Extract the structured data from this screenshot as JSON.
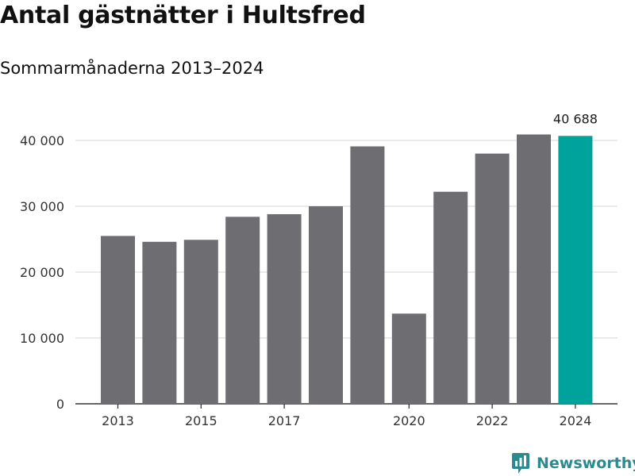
{
  "header": {
    "title": "Antal gästnätter i Hultsfred",
    "subtitle": "Sommarmånaderna 2013–2024"
  },
  "branding": {
    "name": "Newsworthy",
    "logo_icon": "newsworthy-chart-bubble-icon",
    "color": "#2a8a8f"
  },
  "colors": {
    "bar": "#6e6d72",
    "highlight": "#00a39b",
    "grid": "#dddddd",
    "axis": "#333333"
  },
  "chart_data": {
    "type": "bar",
    "title": "Antal gästnätter i Hultsfred",
    "subtitle": "Sommarmånaderna 2013–2024",
    "categories": [
      "2013",
      "2014",
      "2015",
      "2016",
      "2017",
      "2018",
      "2019",
      "2020",
      "2021",
      "2022",
      "2023",
      "2024"
    ],
    "values": [
      25500,
      24600,
      24900,
      28400,
      28800,
      30000,
      39100,
      13700,
      32200,
      38000,
      40900,
      40688
    ],
    "highlight_index": 11,
    "x_tick_labels": [
      "2013",
      "2015",
      "2017",
      "2020",
      "2022",
      "2024"
    ],
    "y_ticks": [
      0,
      10000,
      20000,
      30000,
      40000
    ],
    "y_tick_labels": [
      "0",
      "10 000",
      "20 000",
      "30 000",
      "40 000"
    ],
    "ylim": [
      0,
      40000
    ],
    "annotation": {
      "category": "2024",
      "text": "40 688"
    },
    "grid": true,
    "legend": "none",
    "xlabel": "",
    "ylabel": ""
  }
}
